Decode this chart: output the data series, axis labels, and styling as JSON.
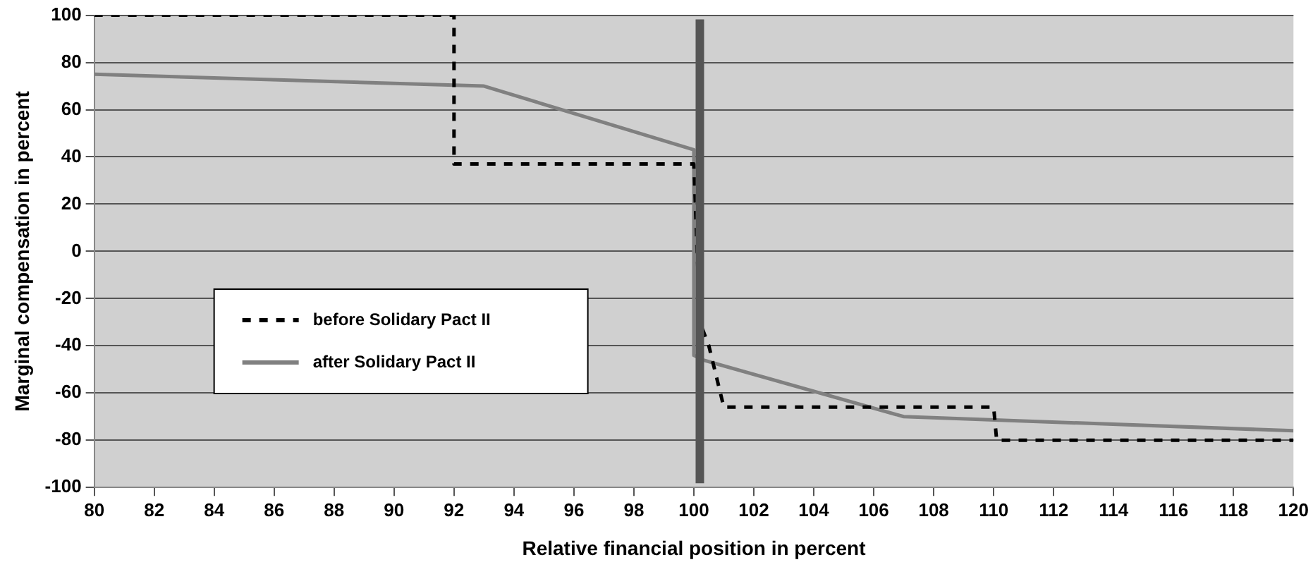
{
  "chart_data": {
    "type": "line",
    "xlabel": "Relative financial position in percent",
    "ylabel": "Marginal compensation in percent",
    "xlim": [
      80,
      120
    ],
    "xticks": [
      80,
      82,
      84,
      86,
      88,
      90,
      92,
      94,
      96,
      98,
      100,
      102,
      104,
      106,
      108,
      110,
      112,
      114,
      116,
      118,
      120
    ],
    "ylim": [
      -100,
      100
    ],
    "yticks": [
      -100,
      -80,
      -60,
      -40,
      -20,
      0,
      20,
      40,
      60,
      80,
      100
    ],
    "grid": "y",
    "legend": "left",
    "marker": "none",
    "series": [
      {
        "name": "before Solidary Pact II",
        "color": "#000000",
        "line_style": "dashed",
        "x": [
          80,
          92,
          92,
          100,
          100.2,
          100.5,
          101,
          110,
          110.1,
          120
        ],
        "values": [
          100,
          100,
          37,
          37,
          -30,
          -40,
          -66,
          -66,
          -80,
          -80
        ]
      },
      {
        "name": "after Solidary Pact II",
        "color": "#808080",
        "line_style": "solid",
        "x": [
          80,
          93,
          100,
          100,
          100.3,
          107,
          120
        ],
        "values": [
          75,
          70,
          43,
          -44,
          -46,
          -70,
          -76
        ]
      }
    ],
    "ref_lines": [
      {
        "axis": "x",
        "value": 100.2,
        "color": "#555555",
        "line_style": "solid"
      }
    ]
  }
}
